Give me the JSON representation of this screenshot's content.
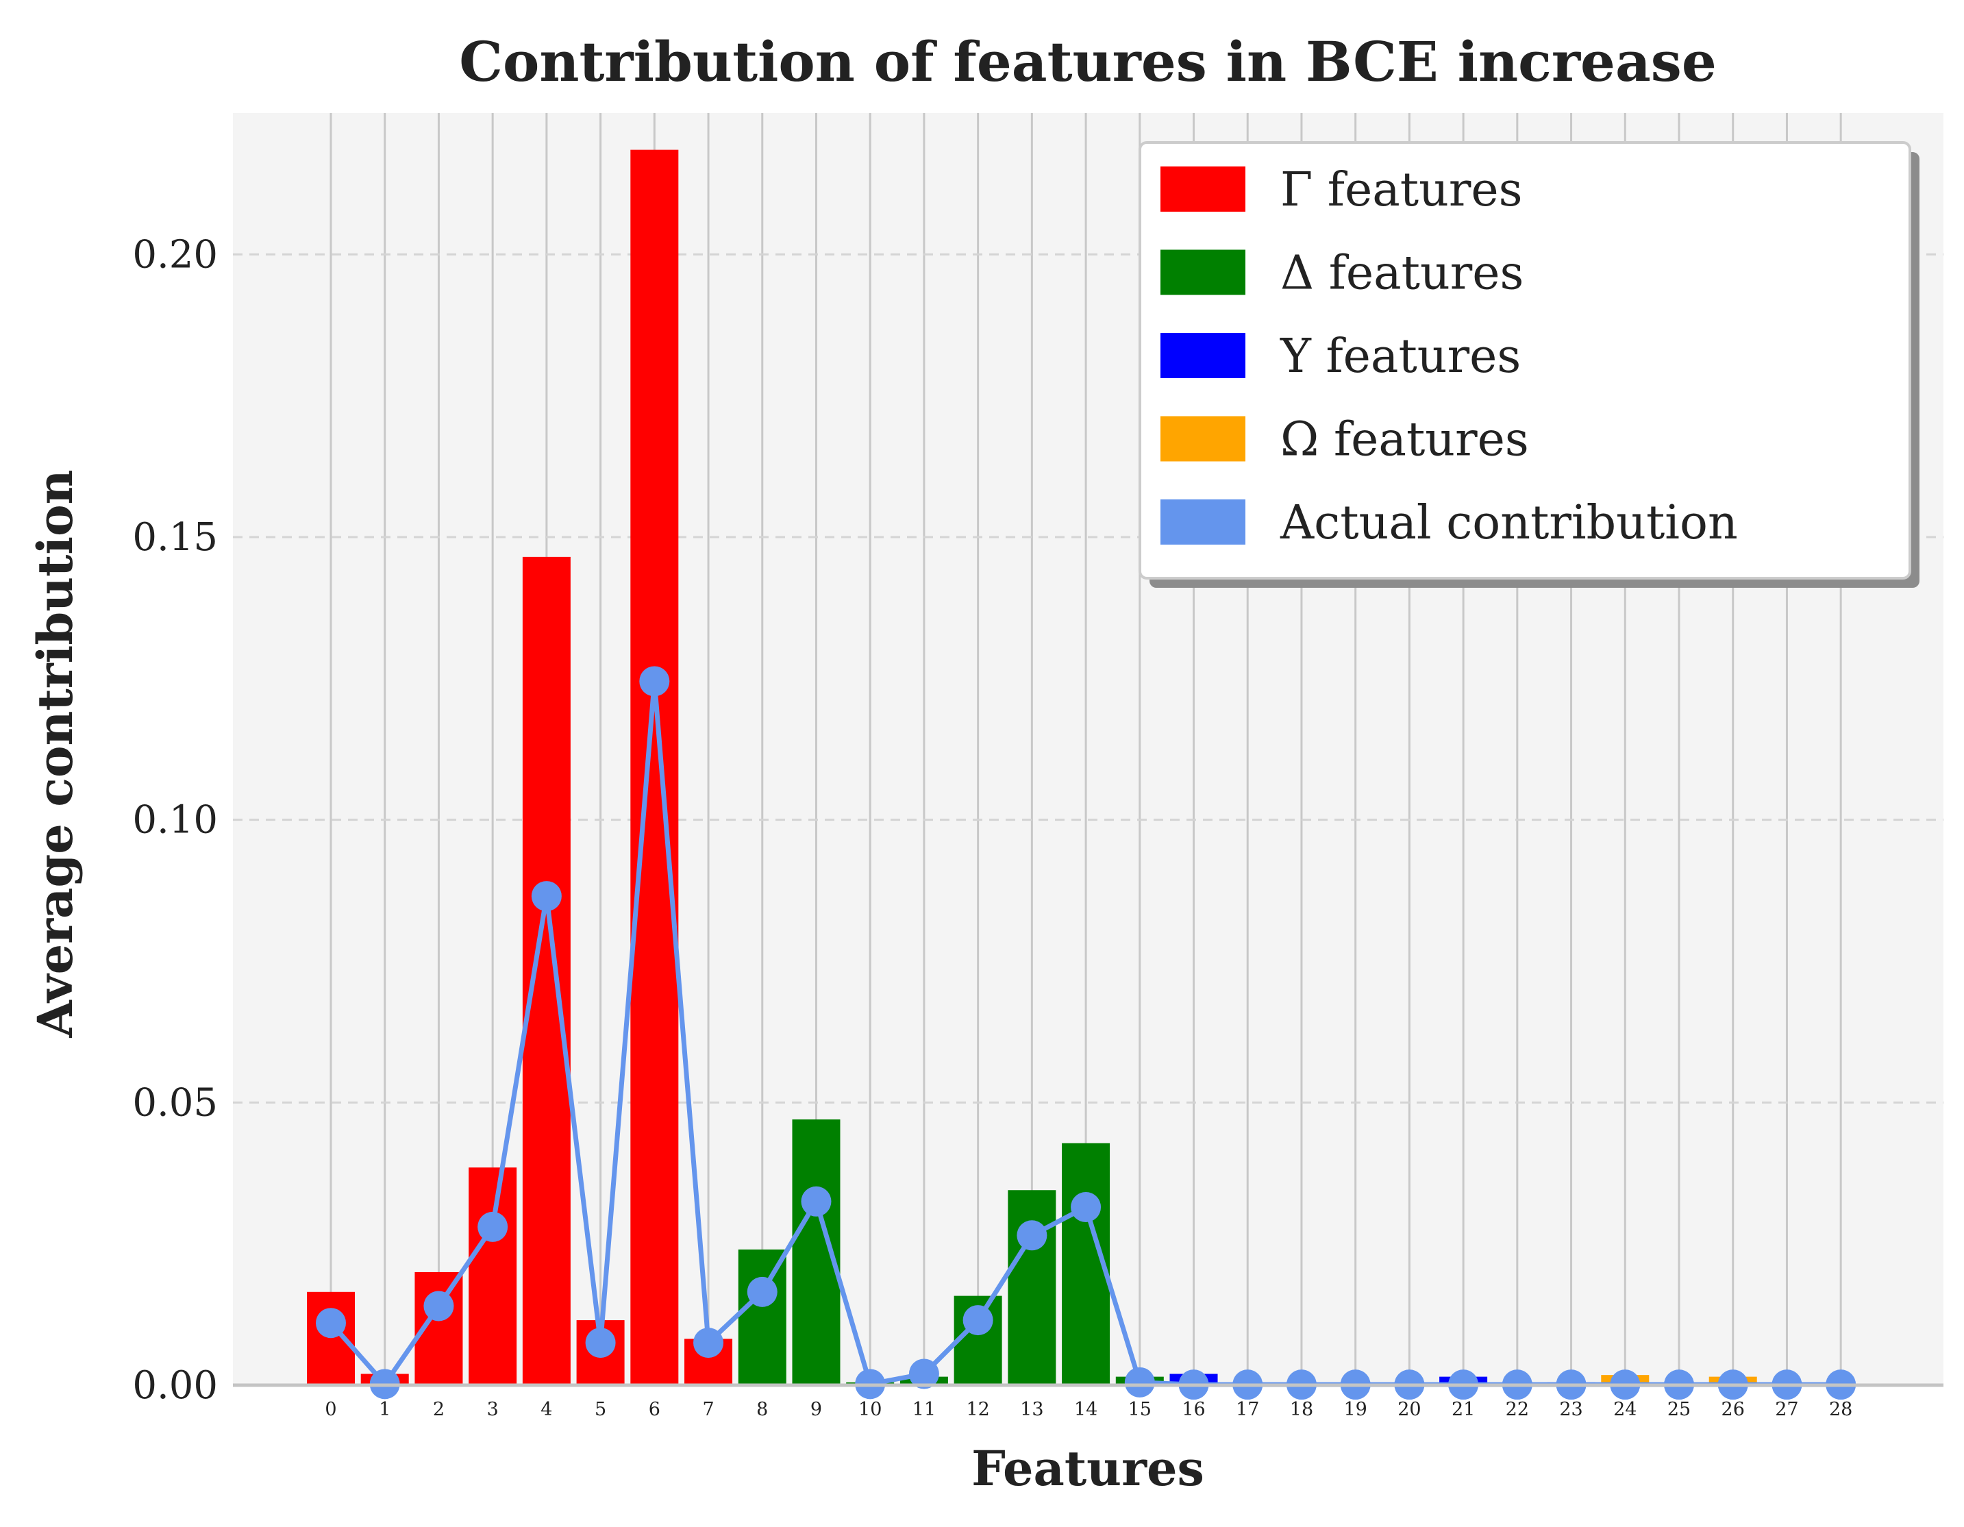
{
  "chart_data": {
    "type": "bar",
    "title": "Contribution of features in BCE increase",
    "xlabel": "Features",
    "ylabel": "Average contribution",
    "ylim": [
      0,
      0.225
    ],
    "yticks": [
      0.0,
      0.05,
      0.1,
      0.15,
      0.2
    ],
    "ytick_labels": [
      "0.00",
      "0.05",
      "0.10",
      "0.15",
      "0.20"
    ],
    "categories": [
      "0",
      "1",
      "2",
      "3",
      "4",
      "5",
      "6",
      "7",
      "8",
      "9",
      "10",
      "11",
      "12",
      "13",
      "14",
      "15",
      "16",
      "17",
      "18",
      "19",
      "20",
      "21",
      "22",
      "23",
      "24",
      "25",
      "26",
      "27",
      "28"
    ],
    "grid": "on",
    "legend_position": "top-right",
    "series": [
      {
        "name": "Γ features",
        "color": "#ff0000",
        "x": [
          0,
          1,
          2,
          3,
          4,
          5,
          6,
          7
        ],
        "values": [
          0.0165,
          0.002,
          0.02,
          0.0385,
          0.1465,
          0.0115,
          0.2185,
          0.0082
        ]
      },
      {
        "name": "Δ features",
        "color": "#008000",
        "x": [
          8,
          9,
          10,
          11,
          12,
          13,
          14,
          15
        ],
        "values": [
          0.024,
          0.047,
          0.0005,
          0.0015,
          0.0158,
          0.0345,
          0.0428,
          0.0015
        ]
      },
      {
        "name": "Υ features",
        "color": "#0000ff",
        "x": [
          16,
          17,
          18,
          19,
          20,
          21,
          22,
          23
        ],
        "values": [
          0.002,
          0.0003,
          0.0003,
          0.0003,
          0.0003,
          0.0015,
          0.0003,
          0.0005
        ]
      },
      {
        "name": "Ω features",
        "color": "#ffa500",
        "x": [
          24,
          25,
          26,
          27,
          28
        ],
        "values": [
          0.0018,
          0.0003,
          0.0015,
          0.0003,
          0.0003
        ]
      }
    ],
    "line": {
      "name": "Actual contribution",
      "color": "#6495ed",
      "values": [
        0.011,
        0.0002,
        0.014,
        0.028,
        0.0865,
        0.0075,
        0.1245,
        0.0075,
        0.0165,
        0.0325,
        0.0002,
        0.002,
        0.0115,
        0.0265,
        0.0315,
        0.0005,
        0.0001,
        0.0001,
        0.0001,
        0.0001,
        0.0001,
        0.0001,
        0.0001,
        0.0001,
        0.0001,
        0.0001,
        0.0001,
        0.0001,
        0.0001
      ]
    }
  }
}
